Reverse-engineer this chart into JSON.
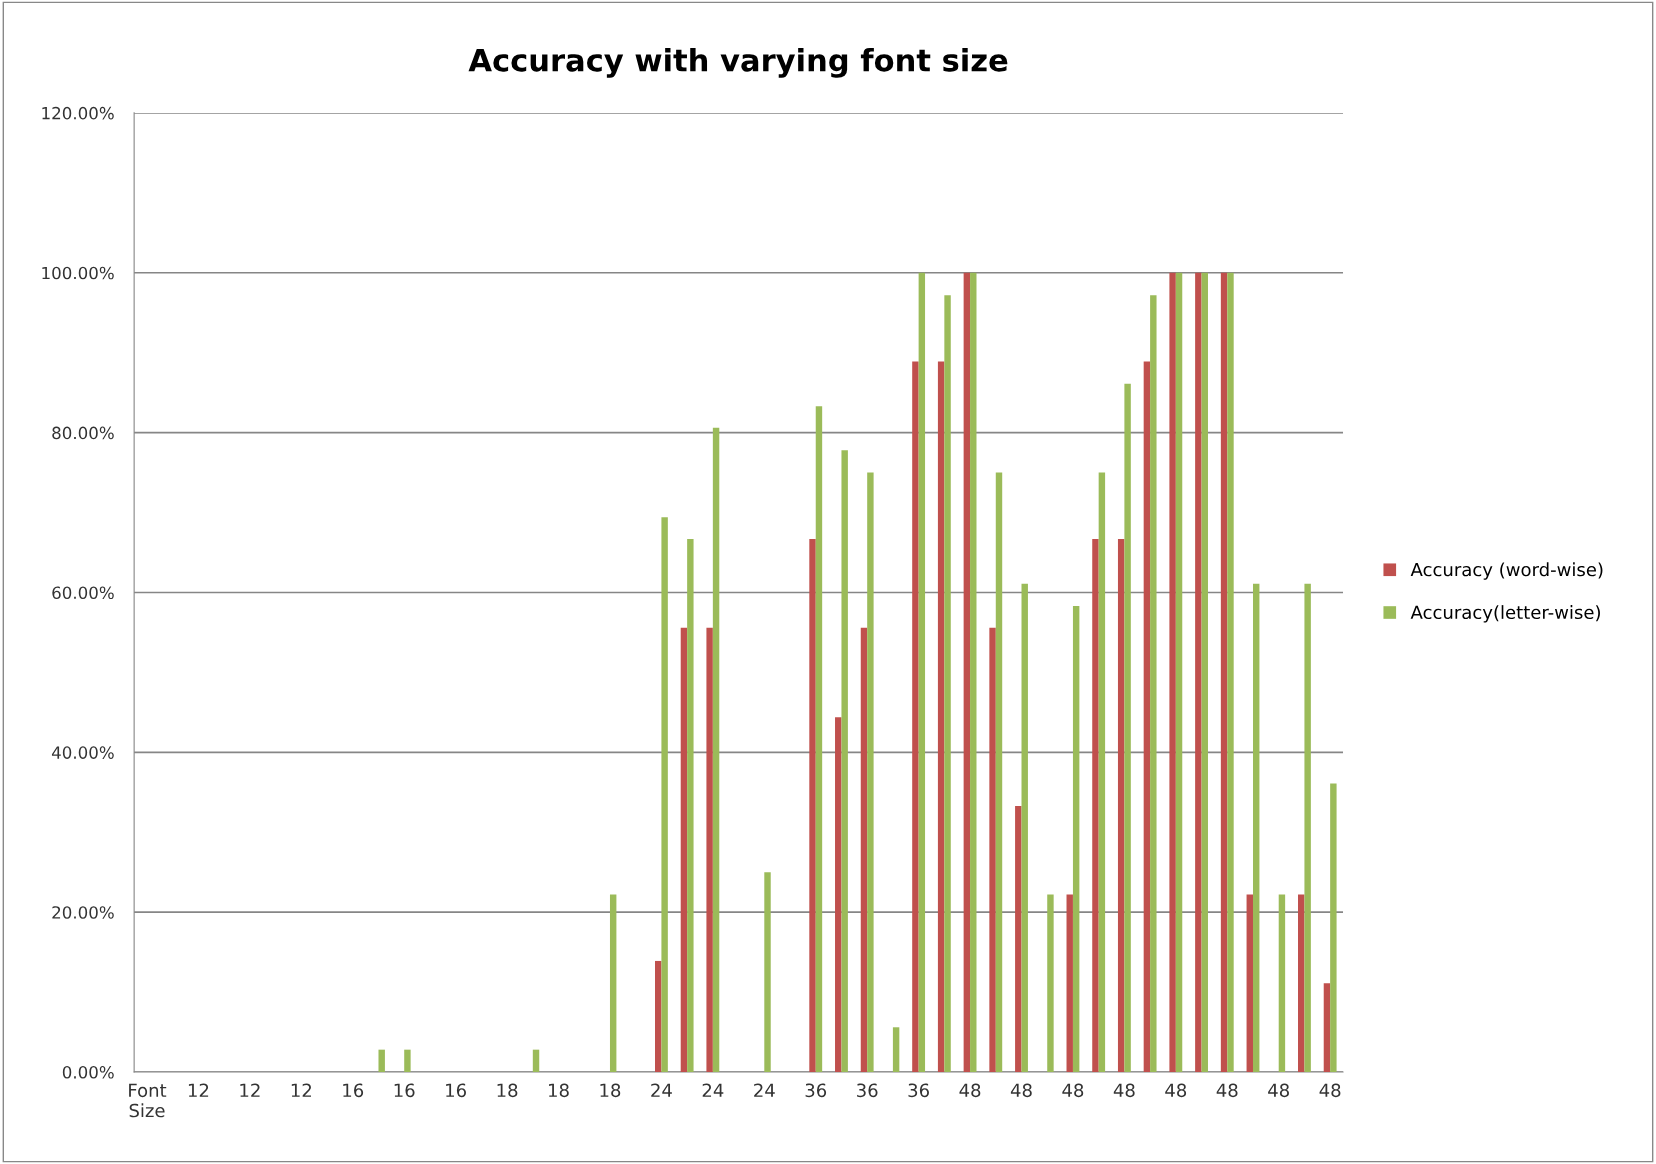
{
  "chart_data": {
    "type": "bar",
    "title": "Accuracy with varying font size",
    "categories": [
      "Font\nSize",
      null,
      "12",
      null,
      "12",
      null,
      "12",
      null,
      "16",
      null,
      "16",
      null,
      "16",
      null,
      "18",
      null,
      "18",
      null,
      "18",
      null,
      "24",
      null,
      "24",
      null,
      "24",
      null,
      "36",
      null,
      "36",
      null,
      "36",
      null,
      "48",
      null,
      "48",
      null,
      "48",
      null,
      "48",
      null,
      "48",
      null,
      "48",
      null,
      "48",
      null,
      "48"
    ],
    "series": [
      {
        "name": "Accuracy (word-wise)",
        "color": "#c0504d",
        "values": [
          0,
          0,
          0,
          0,
          0,
          0,
          0,
          0,
          0,
          0,
          0,
          0,
          0,
          0,
          0,
          0,
          0,
          0,
          0,
          0,
          13.9,
          55.6,
          55.6,
          0,
          0,
          0,
          66.7,
          44.4,
          55.6,
          0,
          88.9,
          88.9,
          100,
          55.6,
          33.3,
          0,
          22.2,
          66.7,
          66.7,
          88.9,
          100,
          100,
          100,
          22.2,
          0,
          22.2,
          11.1
        ]
      },
      {
        "name": "Accuracy(letter-wise)",
        "color": "#9bbb59",
        "values": [
          0,
          0,
          0,
          0,
          0,
          0,
          0,
          0,
          0,
          2.8,
          2.8,
          0,
          0,
          0,
          0,
          2.8,
          0,
          0,
          22.2,
          0,
          69.4,
          66.7,
          80.6,
          0,
          25,
          0,
          83.3,
          77.8,
          75,
          5.6,
          100,
          97.2,
          100,
          75,
          61.1,
          22.2,
          58.3,
          75,
          86.1,
          97.2,
          100,
          100,
          100,
          61.1,
          22.2,
          61.1,
          36.1
        ]
      }
    ],
    "ylim": [
      0,
      120
    ],
    "yticks": [
      {
        "value": 0,
        "label": "0.00%"
      },
      {
        "value": 20,
        "label": "20.00%"
      },
      {
        "value": 40,
        "label": "40.00%"
      },
      {
        "value": 60,
        "label": "60.00%"
      },
      {
        "value": 80,
        "label": "80.00%"
      },
      {
        "value": 100,
        "label": "100.00%"
      },
      {
        "value": 120,
        "label": "120.00%"
      }
    ],
    "grid": "y",
    "legend": "right"
  }
}
